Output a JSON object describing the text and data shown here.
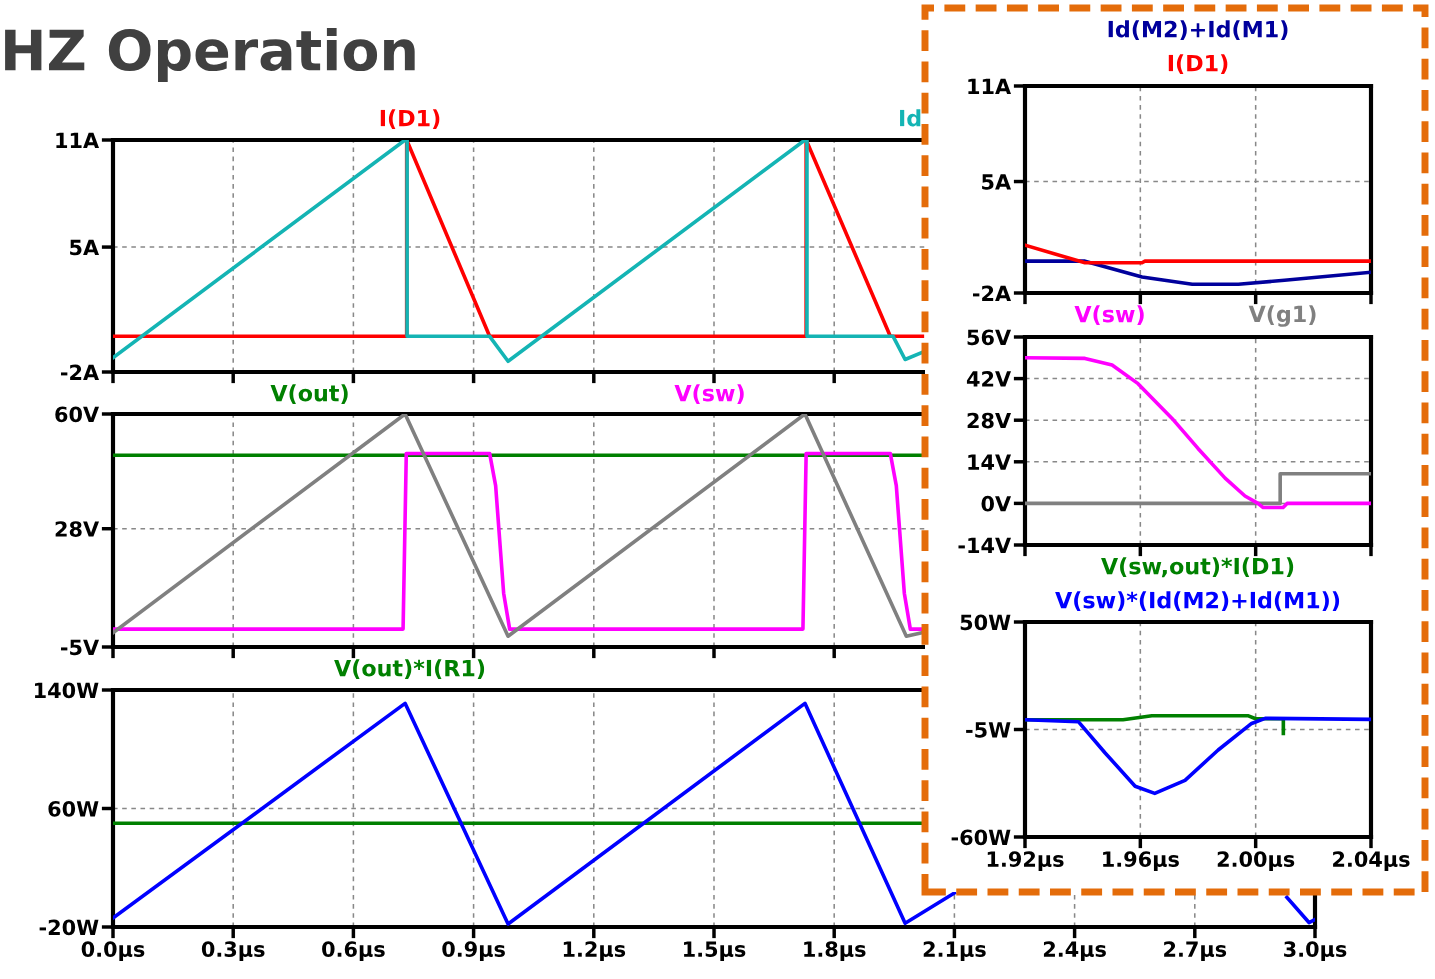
{
  "chart_data": [
    {
      "type": "line",
      "title": "HZ Operation",
      "xlim": [
        0,
        3.0
      ],
      "xticks": [
        0,
        0.3,
        0.6,
        0.9,
        1.2,
        1.5,
        1.8,
        2.1,
        2.4,
        2.7,
        3.0
      ],
      "ylim": [
        -2,
        11
      ],
      "yticks": [
        {
          "value": 11,
          "label": "11A"
        },
        {
          "value": 5,
          "label": "5A"
        },
        {
          "value": -2,
          "label": "-2A"
        }
      ],
      "grid": true,
      "tick_labels": "y",
      "series": [
        {
          "name": "I(D1)",
          "color": "#ff0000",
          "x": [
            0,
            0.733,
            0.733,
            0.94,
            1.73,
            1.73,
            1.94,
            2.02
          ],
          "values": [
            0,
            0,
            11,
            0,
            0,
            11,
            0,
            0
          ]
        },
        {
          "name": "Id",
          "color": "#14b4b4",
          "x": [
            0,
            0.729,
            0.734,
            0.734,
            0.94,
            0.986,
            1.727,
            1.732,
            1.732,
            1.947,
            1.977,
            2.02
          ],
          "values": [
            -1.2,
            11,
            11,
            0,
            0,
            -1.4,
            11,
            11,
            0,
            0,
            -1.3,
            -0.9
          ]
        }
      ]
    },
    {
      "type": "line",
      "xlim": [
        0,
        3.0
      ],
      "xticks": [
        0,
        0.3,
        0.6,
        0.9,
        1.2,
        1.5,
        1.8,
        2.1,
        2.4,
        2.7,
        3.0
      ],
      "ylim": [
        -5,
        60
      ],
      "yticks": [
        {
          "value": 60,
          "label": "60V"
        },
        {
          "value": 28,
          "label": "28V"
        },
        {
          "value": -5,
          "label": "-5V"
        }
      ],
      "grid": true,
      "tick_labels": "y",
      "series": [
        {
          "name": "V(out)",
          "color": "#008000",
          "x": [
            0,
            2.02
          ],
          "values": [
            48.5,
            48.5
          ]
        },
        {
          "name": "V(sw)",
          "color": "#ff00ff",
          "x": [
            0,
            0.724,
            0.732,
            0.94,
            0.955,
            0.975,
            0.99,
            1.722,
            1.73,
            1.94,
            1.955,
            1.975,
            1.99,
            2.02
          ],
          "values": [
            0,
            0,
            49,
            49,
            40,
            10,
            0,
            0,
            49,
            49,
            40,
            10,
            0,
            0
          ]
        },
        {
          "color": "#808080",
          "x": [
            0,
            0.729,
            0.986,
            1.727,
            1.98,
            2.02
          ],
          "values": [
            -1,
            60,
            -2,
            60,
            -2,
            -1
          ]
        }
      ]
    },
    {
      "type": "line",
      "xlim": [
        0,
        3.0
      ],
      "xticks": [
        {
          "value": 0,
          "label": "0.0µs"
        },
        {
          "value": 0.3,
          "label": "0.3µs"
        },
        {
          "value": 0.6,
          "label": "0.6µs"
        },
        {
          "value": 0.9,
          "label": "0.9µs"
        },
        {
          "value": 1.2,
          "label": "1.2µs"
        },
        {
          "value": 1.5,
          "label": "1.5µs"
        },
        {
          "value": 1.8,
          "label": "1.8µs"
        },
        {
          "value": 2.1,
          "label": "2.1µs"
        },
        {
          "value": 2.4,
          "label": "2.4µs"
        },
        {
          "value": 2.7,
          "label": "2.7µs"
        },
        {
          "value": 3.0,
          "label": "3.0µs"
        }
      ],
      "ylim": [
        -20,
        140
      ],
      "yticks": [
        {
          "value": 140,
          "label": "140W"
        },
        {
          "value": 60,
          "label": "60W"
        },
        {
          "value": -20,
          "label": "-20W"
        }
      ],
      "grid": true,
      "series": [
        {
          "name": "V(out)*I(R1)",
          "color": "#008000",
          "x": [
            0,
            2.02
          ],
          "values": [
            50,
            50
          ]
        },
        {
          "color": "#0000ff",
          "x": [
            0,
            0.729,
            0.986,
            1.727,
            1.977,
            2.1,
            2.5,
            2.93,
            2.985,
            3.0
          ],
          "values": [
            -14,
            131,
            -18,
            131,
            -17.5,
            3,
            null,
            0,
            -17,
            -15
          ]
        }
      ]
    },
    {
      "type": "line",
      "xlim": [
        1.92,
        2.04
      ],
      "xticks": [
        1.92,
        1.96,
        2.0,
        2.04
      ],
      "ylim": [
        -2,
        11
      ],
      "yticks": [
        {
          "value": 11,
          "label": "11A"
        },
        {
          "value": 5,
          "label": "5A"
        },
        {
          "value": -2,
          "label": "-2A"
        }
      ],
      "grid": true,
      "tick_labels": "y",
      "series": [
        {
          "name": "Id(M2)+Id(M1)",
          "color": "#00009c",
          "x": [
            1.92,
            1.9408,
            1.9606,
            1.978,
            1.994,
            2.01,
            2.04
          ],
          "values": [
            0,
            0,
            -1.0,
            -1.45,
            -1.45,
            -1.2,
            -0.7
          ]
        },
        {
          "name": "I(D1)",
          "color": "#ff0000",
          "x": [
            1.92,
            1.9408,
            1.9606,
            1.9616,
            2.04
          ],
          "values": [
            1.0,
            -0.1,
            -0.1,
            0,
            0
          ]
        }
      ]
    },
    {
      "type": "line",
      "xlim": [
        1.92,
        2.04
      ],
      "xticks": [
        1.92,
        1.96,
        2.0,
        2.04
      ],
      "ylim": [
        -14,
        56
      ],
      "yticks": [
        {
          "value": 56,
          "label": "56V"
        },
        {
          "value": 42,
          "label": "42V"
        },
        {
          "value": 28,
          "label": "28V"
        },
        {
          "value": 14,
          "label": "14V"
        },
        {
          "value": 0,
          "label": "0V"
        },
        {
          "value": -14,
          "label": "-14V"
        }
      ],
      "grid": true,
      "tick_labels": "y",
      "series": [
        {
          "name": "V(g1)",
          "color": "#808080",
          "x": [
            1.92,
            2.0085,
            2.0085,
            2.04
          ],
          "values": [
            0,
            0,
            10,
            10
          ]
        },
        {
          "name": "V(sw)",
          "color": "#ff00ff",
          "x": [
            1.92,
            1.9408,
            1.9502,
            1.9592,
            1.971,
            1.98,
            1.9894,
            1.9963,
            2.0008,
            2.0026,
            2.0095,
            2.0109,
            2.04
          ],
          "values": [
            49,
            48.8,
            46.6,
            40.3,
            28.6,
            18.5,
            8.5,
            2.5,
            0,
            -1.4,
            -1.4,
            0,
            0
          ]
        }
      ]
    },
    {
      "type": "line",
      "xlim": [
        1.92,
        2.04
      ],
      "xticks": [
        {
          "value": 1.92,
          "label": "1.92µs"
        },
        {
          "value": 1.96,
          "label": "1.96µs"
        },
        {
          "value": 2.0,
          "label": "2.00µs"
        },
        {
          "value": 2.04,
          "label": "2.04µs"
        }
      ],
      "ylim": [
        -60,
        50
      ],
      "yticks": [
        {
          "value": 50,
          "label": "50W"
        },
        {
          "value": -5,
          "label": "-5W"
        },
        {
          "value": -60,
          "label": "-60W"
        }
      ],
      "grid": true,
      "series": [
        {
          "name": "V(sw,out)*I(D1)",
          "color": "#008000",
          "x": [
            1.92,
            1.954,
            1.964,
            1.9975,
            2.0,
            2.0096,
            2.0096
          ],
          "values": [
            0,
            0,
            2,
            2,
            0.5,
            0.5,
            -7
          ]
        },
        {
          "name": "V(sw)*(Id(M2)+Id(M1))",
          "color": "#0000ff",
          "x": [
            1.92,
            1.9385,
            1.9478,
            1.9582,
            1.965,
            1.9755,
            1.987,
            1.9986,
            2.0033,
            2.04
          ],
          "values": [
            0,
            -1,
            -17,
            -34,
            -37.7,
            -31,
            -15.5,
            -1.9,
            0.7,
            0.2
          ]
        }
      ]
    }
  ]
}
